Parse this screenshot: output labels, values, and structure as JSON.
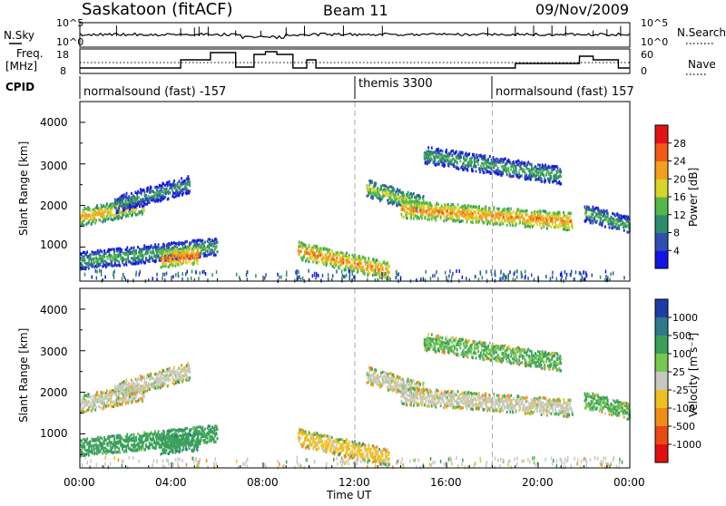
{
  "header": {
    "station": "Saskatoon (fitACF)",
    "beam": "Beam 11",
    "date": "09/Nov/2009"
  },
  "left_labels": {
    "nsky": "N.Sky",
    "freq_line1": "Freq.",
    "freq_line2": "[MHz]",
    "cpid": "CPID"
  },
  "right_labels": {
    "nsearch": "N.Search",
    "nave": "Nave"
  },
  "noise_axis": {
    "top_left": "10^5",
    "bottom_left": "10^0",
    "top_right": "10^5",
    "bottom_right": "10^0"
  },
  "freq_axis": {
    "left_ticks": [
      "18",
      "8"
    ],
    "right_ticks": [
      "60",
      "0"
    ]
  },
  "cpid_segments": [
    {
      "label": "normalsound (fast) -157",
      "start_hour": 0
    },
    {
      "label": "themis 3300",
      "start_hour": 12
    },
    {
      "label": "normalsound (fast) 157",
      "start_hour": 18
    }
  ],
  "x_axis": {
    "label": "Time UT",
    "ticks": [
      "00:00",
      "04:00",
      "08:00",
      "12:00",
      "16:00",
      "20:00",
      "00:00"
    ]
  },
  "y_axis": {
    "label": "Slant Range [km]",
    "ticks": [
      "1000",
      "2000",
      "3000",
      "4000"
    ]
  },
  "power_colorbar": {
    "label": "Power [dB]",
    "ticks": [
      "4",
      "8",
      "12",
      "16",
      "20",
      "24",
      "28"
    ],
    "colors": [
      "#1414e6",
      "#2f4fb0",
      "#2e8c6c",
      "#55b84a",
      "#d9d42a",
      "#f2a01e",
      "#f05a14",
      "#e01414"
    ]
  },
  "velocity_colorbar": {
    "label": "Velocity [m s⁻¹]",
    "ticks": [
      "1000",
      "500",
      "100",
      "25",
      "-25",
      "-100",
      "-500",
      "-1000"
    ],
    "colors": [
      "#1e3ca8",
      "#2f7a8a",
      "#3aa05a",
      "#78c850",
      "#c8c8c0",
      "#f0c020",
      "#f08c18",
      "#e84a14",
      "#e01010"
    ]
  },
  "chart_data": {
    "type": "heatmap",
    "title": "Saskatoon (fitACF)  Beam 11  09/Nov/2009",
    "xlabel": "Time UT",
    "ylabel": "Slant Range [km]",
    "xlim": [
      0,
      24
    ],
    "ylim": [
      180,
      4500
    ],
    "colorbars": [
      "Power [dB]",
      "Velocity [m s⁻¹]"
    ],
    "scatter_bands": [
      {
        "t0": 0.0,
        "t1": 2.8,
        "r_start": 1700,
        "r_end": 2000,
        "power_db": 22,
        "velocity": 0
      },
      {
        "t0": 1.5,
        "t1": 4.8,
        "r_start": 2000,
        "r_end": 2500,
        "power_db": 12,
        "velocity": 0
      },
      {
        "t0": 0.0,
        "t1": 6.0,
        "r_start": 650,
        "r_end": 1000,
        "power_db": 14,
        "velocity": 300
      },
      {
        "t0": 3.5,
        "t1": 5.2,
        "r_start": 700,
        "r_end": 800,
        "power_db": 26,
        "velocity": 400
      },
      {
        "t0": 9.5,
        "t1": 13.5,
        "r_start": 900,
        "r_end": 400,
        "power_db": 24,
        "velocity": -50
      },
      {
        "t0": 12.5,
        "t1": 15.0,
        "r_start": 2400,
        "r_end": 2000,
        "power_db": 18,
        "velocity": 0
      },
      {
        "t0": 14.0,
        "t1": 21.5,
        "r_start": 1900,
        "r_end": 1600,
        "power_db": 24,
        "velocity": 0
      },
      {
        "t0": 15.0,
        "t1": 21.0,
        "r_start": 3200,
        "r_end": 2700,
        "power_db": 14,
        "velocity": 100
      },
      {
        "t0": 22.0,
        "t1": 24.0,
        "r_start": 1800,
        "r_end": 1500,
        "power_db": 14,
        "velocity": 100
      }
    ]
  }
}
